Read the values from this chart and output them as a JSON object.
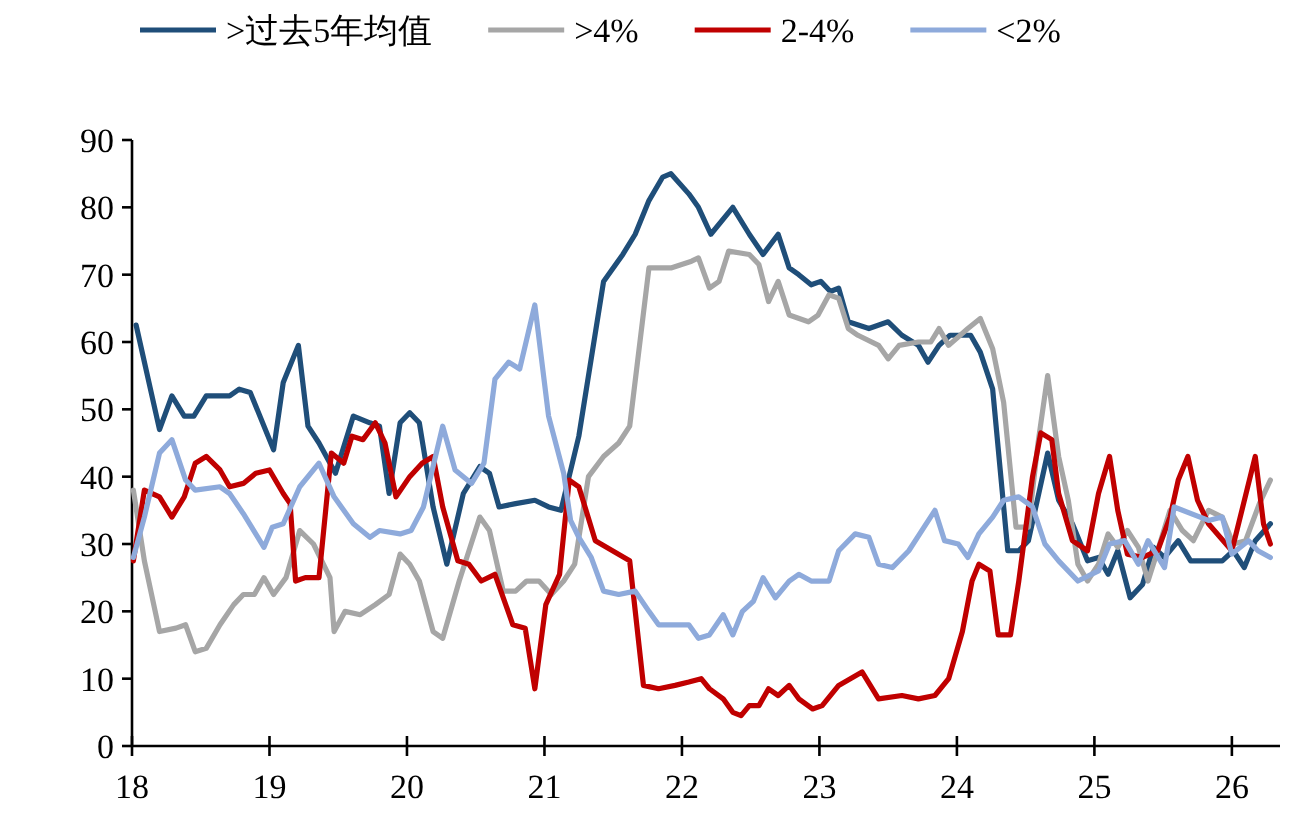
{
  "chart_data": {
    "type": "line",
    "xlim": [
      18,
      26.35
    ],
    "ylim": [
      0,
      90
    ],
    "xticks": [
      18,
      19,
      20,
      21,
      22,
      23,
      24,
      25,
      26
    ],
    "yticks": [
      0,
      10,
      20,
      30,
      40,
      50,
      60,
      70,
      80,
      90
    ],
    "legend": "top",
    "series": [
      {
        "name": ">过去5年均值",
        "color": "#1f4e79",
        "x": [
          18.03,
          18.2,
          18.29,
          18.38,
          18.45,
          18.54,
          18.71,
          18.78,
          18.86,
          19.03,
          19.1,
          19.21,
          19.28,
          19.36,
          19.48,
          19.61,
          19.73,
          19.8,
          19.87,
          19.95,
          20.02,
          20.09,
          20.19,
          20.29,
          20.41,
          20.53,
          20.6,
          20.67,
          20.79,
          20.93,
          21.03,
          21.12,
          21.25,
          21.43,
          21.57,
          21.66,
          21.76,
          21.86,
          21.92,
          22.05,
          22.12,
          22.21,
          22.37,
          22.49,
          22.59,
          22.7,
          22.78,
          22.85,
          22.94,
          23.01,
          23.08,
          23.14,
          23.21,
          23.36,
          23.5,
          23.6,
          23.72,
          23.79,
          23.87,
          23.95,
          24.1,
          24.17,
          24.26,
          24.37,
          24.45,
          24.52,
          24.66,
          24.74,
          24.84,
          24.95,
          25.03,
          25.1,
          25.17,
          25.26,
          25.35,
          25.43,
          25.51,
          25.61,
          25.7,
          25.93,
          26.01,
          26.09,
          26.17,
          26.28
        ],
        "values": [
          62.5,
          47,
          52,
          49,
          49,
          52,
          52,
          53,
          52.5,
          44,
          54,
          59.5,
          47.5,
          45,
          40.5,
          49,
          48,
          47.5,
          37.5,
          48,
          49.5,
          48,
          35.5,
          27,
          37.5,
          41.5,
          40.5,
          35.5,
          36,
          36.5,
          35.5,
          35,
          46,
          69,
          73,
          76,
          81,
          84.5,
          85,
          82,
          80,
          76,
          80,
          76,
          73,
          76,
          71,
          70,
          68.5,
          69,
          67.5,
          68,
          63,
          62,
          63,
          61,
          59.5,
          57,
          59.5,
          61,
          61,
          58.5,
          53,
          29,
          29,
          30.5,
          43.5,
          36.5,
          33,
          27.5,
          28,
          25.5,
          29,
          22,
          24,
          29.5,
          28,
          30.5,
          27.5,
          27.5,
          29,
          26.5,
          30.5,
          33
        ]
      },
      {
        "name": ">4%",
        "color": "#a6a6a6",
        "x": [
          18.01,
          18.09,
          18.2,
          18.32,
          18.39,
          18.46,
          18.54,
          18.64,
          18.74,
          18.81,
          18.89,
          18.96,
          19.03,
          19.12,
          19.22,
          19.32,
          19.44,
          19.47,
          19.55,
          19.66,
          19.77,
          19.87,
          19.95,
          20.02,
          20.09,
          20.19,
          20.26,
          20.38,
          20.53,
          20.6,
          20.7,
          20.79,
          20.87,
          20.96,
          21.05,
          21.14,
          21.22,
          21.32,
          21.43,
          21.54,
          21.62,
          21.76,
          21.92,
          22.07,
          22.12,
          22.2,
          22.27,
          22.34,
          22.49,
          22.56,
          22.63,
          22.7,
          22.78,
          22.92,
          22.99,
          23.07,
          23.14,
          23.21,
          23.28,
          23.43,
          23.5,
          23.58,
          23.72,
          23.81,
          23.87,
          23.94,
          24.08,
          24.17,
          24.26,
          24.34,
          24.43,
          24.52,
          24.59,
          24.66,
          24.74,
          24.81,
          24.88,
          24.95,
          25.03,
          25.1,
          25.17,
          25.24,
          25.32,
          25.39,
          25.46,
          25.55,
          25.64,
          25.72,
          25.83,
          25.93,
          26.01,
          26.1,
          26.2,
          26.28
        ],
        "values": [
          38,
          27.5,
          17,
          17.5,
          18,
          14,
          14.5,
          18,
          21,
          22.5,
          22.5,
          25,
          22.5,
          25,
          32,
          30,
          25,
          17,
          20,
          19.5,
          21,
          22.5,
          28.5,
          27,
          24.5,
          17,
          16,
          24.5,
          34,
          32,
          23,
          23,
          24.5,
          24.5,
          22.5,
          24.5,
          27,
          40,
          43,
          45,
          47.5,
          71,
          71,
          72,
          72.5,
          68,
          69,
          73.5,
          73,
          71.5,
          66,
          69,
          64,
          63,
          64,
          67,
          66.5,
          62,
          61,
          59.5,
          57.5,
          59.5,
          60,
          60,
          62,
          59.5,
          62,
          63.5,
          59,
          51,
          32.5,
          32.5,
          45,
          55,
          43,
          36.5,
          27,
          24.5,
          27,
          31.5,
          29.5,
          32,
          29.5,
          24.5,
          29,
          35,
          32,
          30.5,
          35,
          34,
          30,
          30.5,
          36,
          39.5
        ]
      },
      {
        "name": "2-4%",
        "color": "#c00000",
        "x": [
          18.01,
          18.09,
          18.2,
          18.29,
          18.38,
          18.46,
          18.54,
          18.64,
          18.71,
          18.81,
          18.9,
          19.0,
          19.1,
          19.15,
          19.19,
          19.26,
          19.36,
          19.45,
          19.54,
          19.6,
          19.68,
          19.77,
          19.84,
          19.92,
          20.02,
          20.11,
          20.19,
          20.26,
          20.37,
          20.45,
          20.54,
          20.64,
          20.77,
          20.86,
          20.93,
          21.01,
          21.11,
          21.18,
          21.25,
          21.37,
          21.62,
          21.72,
          21.83,
          21.95,
          22.05,
          22.14,
          22.2,
          22.3,
          22.37,
          22.43,
          22.49,
          22.56,
          22.63,
          22.7,
          22.78,
          22.85,
          22.95,
          23.02,
          23.14,
          23.31,
          23.43,
          23.6,
          23.72,
          23.84,
          23.94,
          24.04,
          24.11,
          24.16,
          24.24,
          24.3,
          24.39,
          24.45,
          24.55,
          24.61,
          24.69,
          24.74,
          24.84,
          24.95,
          25.03,
          25.11,
          25.17,
          25.24,
          25.35,
          25.46,
          25.55,
          25.61,
          25.68,
          25.75,
          25.83,
          26.0,
          26.17,
          26.23,
          26.28
        ],
        "values": [
          27.5,
          38,
          37,
          34,
          37,
          42,
          43,
          41,
          38.5,
          39,
          40.5,
          41,
          37.5,
          36,
          24.5,
          25,
          25,
          43.5,
          42,
          46,
          45.5,
          48,
          45,
          37,
          40,
          42,
          43,
          35.5,
          27.5,
          27,
          24.5,
          25.5,
          18,
          17.5,
          8.5,
          21,
          25.5,
          39.5,
          38.5,
          30.5,
          27.5,
          9,
          8.5,
          9,
          9.5,
          10,
          8.5,
          7,
          5,
          4.5,
          6,
          6,
          8.5,
          7.5,
          9,
          7,
          5.5,
          6,
          9,
          11,
          7,
          7.5,
          7,
          7.5,
          10,
          17,
          24.5,
          27,
          26,
          16.5,
          16.5,
          24.5,
          40,
          46.5,
          45.5,
          37.5,
          30.5,
          29,
          37.5,
          43,
          35,
          28.5,
          28,
          29,
          34,
          39.5,
          43,
          36.5,
          33,
          29,
          43,
          33,
          30
        ]
      },
      {
        "name": "<2%",
        "color": "#8eaadb",
        "x": [
          18.01,
          18.09,
          18.2,
          18.29,
          18.39,
          18.46,
          18.64,
          18.71,
          18.81,
          18.9,
          18.96,
          19.02,
          19.1,
          19.22,
          19.36,
          19.47,
          19.54,
          19.61,
          19.73,
          19.8,
          19.95,
          20.03,
          20.12,
          20.26,
          20.35,
          20.47,
          20.56,
          20.64,
          20.74,
          20.82,
          20.93,
          21.03,
          21.14,
          21.19,
          21.25,
          21.34,
          21.43,
          21.54,
          21.66,
          21.76,
          21.83,
          21.95,
          22.05,
          22.12,
          22.2,
          22.3,
          22.37,
          22.44,
          22.52,
          22.59,
          22.68,
          22.78,
          22.85,
          22.94,
          23.07,
          23.14,
          23.26,
          23.36,
          23.43,
          23.53,
          23.65,
          23.84,
          23.91,
          24.01,
          24.08,
          24.16,
          24.26,
          24.34,
          24.45,
          24.55,
          24.64,
          24.74,
          24.88,
          25.03,
          25.11,
          25.22,
          25.32,
          25.39,
          25.51,
          25.58,
          25.83,
          25.93,
          26.0,
          26.12,
          26.19,
          26.28
        ],
        "values": [
          28,
          34,
          43.5,
          45.5,
          39.5,
          38,
          38.5,
          37.5,
          34.5,
          31.5,
          29.5,
          32.5,
          33,
          38.5,
          42,
          37,
          35,
          33,
          31,
          32,
          31.5,
          32,
          35.5,
          47.5,
          41,
          39,
          42,
          54.5,
          57,
          56,
          65.5,
          49,
          40.5,
          33.5,
          31,
          28,
          23,
          22.5,
          23,
          20,
          18,
          18,
          18,
          16,
          16.5,
          19.5,
          16.5,
          20,
          21.5,
          25,
          22,
          24.5,
          25.5,
          24.5,
          24.5,
          29,
          31.5,
          31,
          27,
          26.5,
          29,
          35,
          30.5,
          30,
          28,
          31.5,
          34,
          36.5,
          37,
          35.5,
          30,
          27.5,
          24.5,
          26,
          30,
          30.5,
          27,
          30.5,
          26.5,
          35.5,
          33.5,
          34,
          28.5,
          30.5,
          29,
          28
        ]
      }
    ]
  }
}
